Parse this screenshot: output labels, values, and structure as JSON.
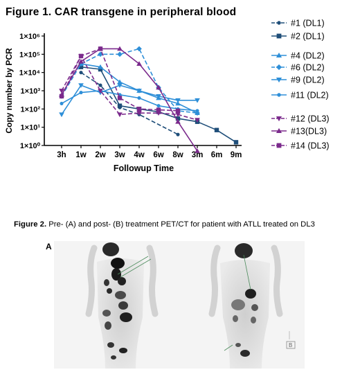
{
  "figure1": {
    "title": "Figure 1.  CAR transgene in peripheral blood",
    "chart_data": {
      "type": "line",
      "title": "Figure 1.  CAR transgene in peripheral blood",
      "xlabel": "Followup Time",
      "ylabel": "Copy number by PCR",
      "yscale": "log",
      "ylim": [
        1,
        1000000
      ],
      "yticks": [
        "1×10⁰",
        "1×10¹",
        "1×10²",
        "1×10³",
        "1×10⁴",
        "1×10⁵",
        "1×10⁶"
      ],
      "categories": [
        "3h",
        "1w",
        "2w",
        "3w",
        "4w",
        "6w",
        "8w",
        "3m",
        "6m",
        "9m"
      ],
      "legend_position": "right",
      "series": [
        {
          "name": "#1 (DL1)",
          "color": "#1f4e79",
          "marker": "circle",
          "dashed": true,
          "values": [
            null,
            10000,
            2000,
            120,
            50,
            null,
            4,
            null,
            null,
            null
          ]
        },
        {
          "name": "#2 (DL1)",
          "color": "#1f4e79",
          "marker": "square",
          "dashed": false,
          "values": [
            null,
            20000,
            15000,
            150,
            100,
            70,
            30,
            20,
            7,
            1.5
          ]
        },
        {
          "name": "#4 (DL2)",
          "color": "#2e8fd8",
          "marker": "triangle-up",
          "dashed": false,
          "values": [
            null,
            30000,
            20000,
            3000,
            1000,
            400,
            200,
            60,
            null,
            null
          ]
        },
        {
          "name": "#6 (DL2)",
          "color": "#2e8fd8",
          "marker": "diamond",
          "dashed": true,
          "values": [
            500,
            30000,
            100000,
            100000,
            200000,
            1500,
            80,
            60,
            null,
            null
          ]
        },
        {
          "name": "#9 (DL2)",
          "color": "#2e8fd8",
          "marker": "triangle-down",
          "dashed": false,
          "values": [
            50,
            2000,
            800,
            2000,
            1000,
            500,
            300,
            300,
            null,
            null
          ]
        },
        {
          "name": "#11 (DL2)",
          "color": "#2e8fd8",
          "marker": "circle",
          "dashed": false,
          "values": [
            200,
            800,
            1000,
            600,
            400,
            150,
            100,
            80,
            null,
            null
          ]
        },
        {
          "name": "#12 (DL3)",
          "color": "#7b2a8c",
          "marker": "triangle-down",
          "dashed": true,
          "values": [
            1000,
            80000,
            1000,
            50,
            60,
            60,
            50,
            25,
            null,
            null
          ]
        },
        {
          "name": "#13(DL3)",
          "color": "#7b2a8c",
          "marker": "triangle-up",
          "dashed": false,
          "values": [
            600,
            40000,
            200000,
            200000,
            30000,
            1500,
            20,
            0.5,
            null,
            null
          ]
        },
        {
          "name": "#14 (DL3)",
          "color": "#7b2a8c",
          "marker": "square",
          "dashed": true,
          "values": [
            500,
            80000,
            200000,
            400,
            100,
            90,
            80,
            null,
            null,
            null
          ]
        }
      ]
    }
  },
  "figure2": {
    "caption_bold": "Figure 2.",
    "caption_text": " Pre- (A) and post- (B) treatment PET/CT for patient with ATLL treated on DL3",
    "panel_a_label": "A",
    "panel_b_label": "B",
    "panel_a_box_letter": "A",
    "panel_b_box_letter": "B"
  }
}
